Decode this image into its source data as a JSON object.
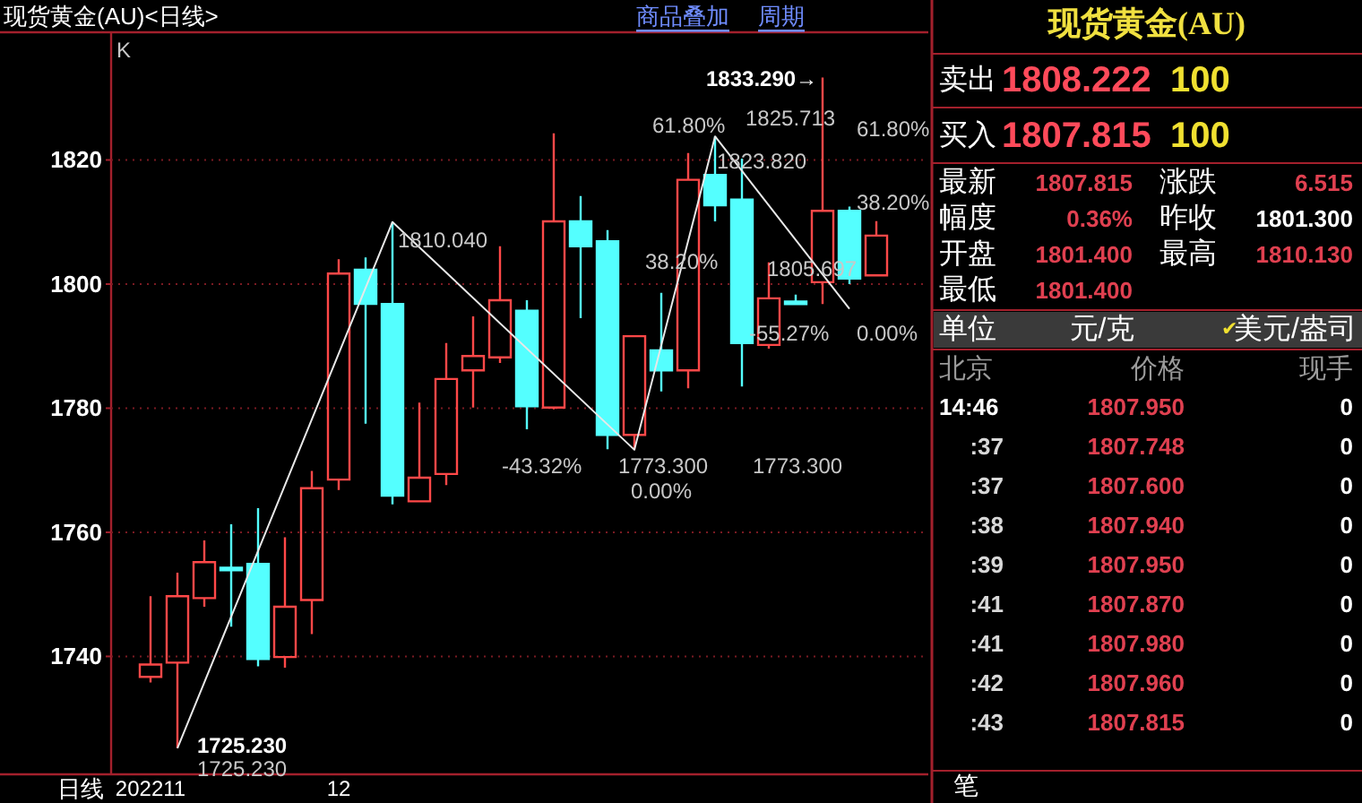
{
  "chart_data": [
    {
      "type": "candlestick",
      "title": "现货黄金(AU)<日线>",
      "xlabel": "日线",
      "categories": [
        "202211",
        null,
        null,
        null,
        null,
        null,
        null,
        "12",
        null,
        null,
        null,
        null,
        null,
        null,
        null,
        null,
        null,
        null,
        null,
        null,
        null,
        null,
        null,
        null,
        null,
        null,
        null,
        null
      ],
      "ohlc": [
        [
          1736.7,
          1749.7,
          1735.8,
          1738.7
        ],
        [
          1739.0,
          1753.5,
          1725.23,
          1749.7
        ],
        [
          1749.4,
          1758.7,
          1748.0,
          1755.2
        ],
        [
          1754.3,
          1761.3,
          1744.8,
          1754.0
        ],
        [
          1754.9,
          1763.9,
          1738.4,
          1739.6
        ],
        [
          1739.9,
          1759.2,
          1738.2,
          1748.0
        ],
        [
          1749.1,
          1769.9,
          1743.6,
          1767.1
        ],
        [
          1768.5,
          1804.0,
          1766.8,
          1801.7
        ],
        [
          1802.3,
          1804.3,
          1777.5,
          1796.8
        ],
        [
          1796.8,
          1810.04,
          1764.5,
          1765.9
        ],
        [
          1765.0,
          1780.9,
          1765.0,
          1768.8
        ],
        [
          1769.4,
          1790.5,
          1767.6,
          1784.7
        ],
        [
          1786.1,
          1794.8,
          1780.1,
          1788.4
        ],
        [
          1788.2,
          1806.1,
          1787.3,
          1797.4
        ],
        [
          1795.7,
          1797.4,
          1776.6,
          1780.3
        ],
        [
          1780.1,
          1824.3,
          1779.8,
          1810.1
        ],
        [
          1810.1,
          1814.2,
          1794.5,
          1806.1
        ],
        [
          1806.9,
          1808.7,
          1773.4,
          1775.7
        ],
        [
          1775.7,
          1791.6,
          1773.3,
          1791.6
        ],
        [
          1789.3,
          1798.6,
          1782.7,
          1786.1
        ],
        [
          1786.1,
          1821.1,
          1783.2,
          1816.8
        ],
        [
          1817.6,
          1823.82,
          1810.1,
          1812.7
        ],
        [
          1813.6,
          1820.2,
          1783.5,
          1790.5
        ],
        [
          1790.2,
          1803.5,
          1789.6,
          1797.7
        ],
        [
          1797.2,
          1798.3,
          1797.1,
          1797.1
        ],
        [
          1800.3,
          1833.29,
          1796.8,
          1811.8
        ],
        [
          1811.8,
          1812.5,
          1800.0,
          1800.9
        ],
        [
          1801.4,
          1810.13,
          1801.4,
          1807.815
        ]
      ],
      "colors": [
        "#ff4848",
        "#ff4848",
        "#ff4848",
        "#54ffff",
        "#54ffff",
        "#ff4848",
        "#ff4848",
        "#ff4848",
        "#54ffff",
        "#54ffff",
        "#ff4848",
        "#ff4848",
        "#ff4848",
        "#ff4848",
        "#54ffff",
        "#ff4848",
        "#54ffff",
        "#54ffff",
        "#ff4848",
        "#54ffff",
        "#ff4848",
        "#54ffff",
        "#54ffff",
        "#ff4848",
        "#54ffff",
        "#ff4848",
        "#54ffff",
        "#ff4848"
      ],
      "ylim": [
        1721,
        1840
      ],
      "yticks": [
        1740,
        1760,
        1780,
        1800,
        1820
      ],
      "grid": "y",
      "series": [
        {
          "type": "line",
          "color": "#e8e8e8",
          "values": [
            null,
            1725.2,
            null,
            null,
            null,
            null,
            null,
            null,
            null,
            1810.0,
            null,
            null,
            null,
            null,
            null,
            null,
            null,
            null,
            1773.3,
            null,
            null,
            1823.8,
            null,
            null,
            null,
            null,
            1796.0,
            null
          ]
        }
      ],
      "annotations": [
        "K",
        "商品叠加",
        "周期",
        "1833.290→",
        "1810.040",
        "1725.230",
        "1725.230",
        "1823.820",
        "1825.713",
        "1805.697",
        "1773.300",
        "1773.300",
        "61.80%",
        "38.20%",
        "-43.32%",
        "0.00%",
        "-55.27%",
        "61.80%",
        "38.20%",
        "0.00%"
      ]
    },
    {
      "type": "other",
      "title": "现货黄金(AU)",
      "annotations": [
        "卖出",
        "1808.222",
        "100",
        "买入",
        "1807.815",
        "100",
        "最新",
        "1807.815",
        "涨跌",
        "6.515",
        "幅度",
        "0.36%",
        "昨收",
        "1801.300",
        "开盘",
        "1801.400",
        "最高",
        "1810.130",
        "最低",
        "1801.400",
        "单位",
        "元/克",
        "✔",
        "美元/盎司",
        "北京",
        "价格",
        "现手",
        "14:46",
        "1807.950",
        "0",
        ":37",
        "1807.748",
        "0",
        ":37",
        "1807.600",
        "0",
        ":38",
        "1807.940",
        "0",
        ":39",
        "1807.950",
        "0",
        ":41",
        "1807.870",
        "0",
        ":41",
        "1807.980",
        "0",
        ":42",
        "1807.960",
        "0",
        ":43",
        "1807.815",
        "0",
        "笔"
      ]
    }
  ]
}
